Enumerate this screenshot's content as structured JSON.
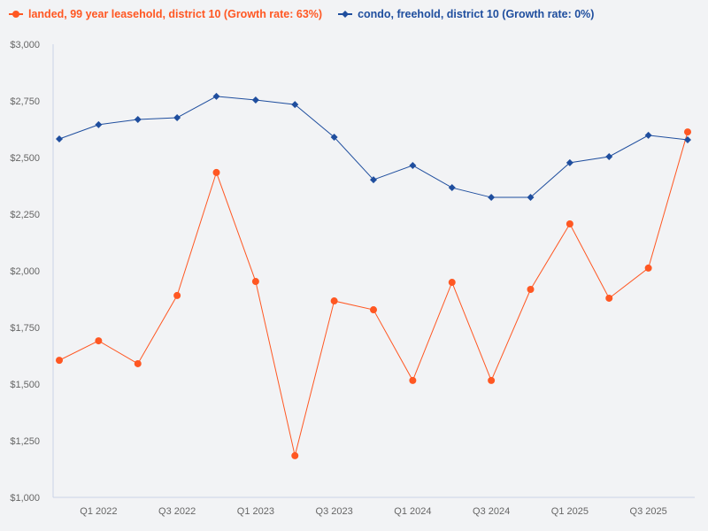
{
  "chart_data": {
    "type": "line",
    "categories": [
      "",
      "Q1 2022",
      "",
      "Q3 2022",
      "",
      "Q1 2023",
      "",
      "Q3 2023",
      "",
      "Q1 2024",
      "",
      "Q3 2024",
      "",
      "Q1 2025",
      "",
      "Q3 2025",
      ""
    ],
    "y_tick_labels": [
      "$1,000",
      "$1,250",
      "$1,500",
      "$1,750",
      "$2,000",
      "$2,250",
      "$2,500",
      "$2,750",
      "$3,000"
    ],
    "ylim": [
      1000,
      3000
    ],
    "grid": false,
    "legend_position": "top-left",
    "series": [
      {
        "name": "landed, 99 year leasehold, district 10 (Growth rate: 63%)",
        "color": "#ff5722",
        "marker": "circle",
        "values": [
          1605,
          1691,
          1590,
          1891,
          2434,
          1953,
          1184,
          1867,
          1828,
          1516,
          1949,
          1516,
          1918,
          2207,
          1879,
          2012,
          2613
        ]
      },
      {
        "name": "condo, freehold, district 10 (Growth rate: 0%)",
        "color": "#1f4e9e",
        "marker": "diamond",
        "values": [
          2582,
          2645,
          2668,
          2676,
          2770,
          2754,
          2734,
          2590,
          2402,
          2465,
          2367,
          2324,
          2324,
          2477,
          2504,
          2598,
          2578
        ]
      }
    ]
  }
}
